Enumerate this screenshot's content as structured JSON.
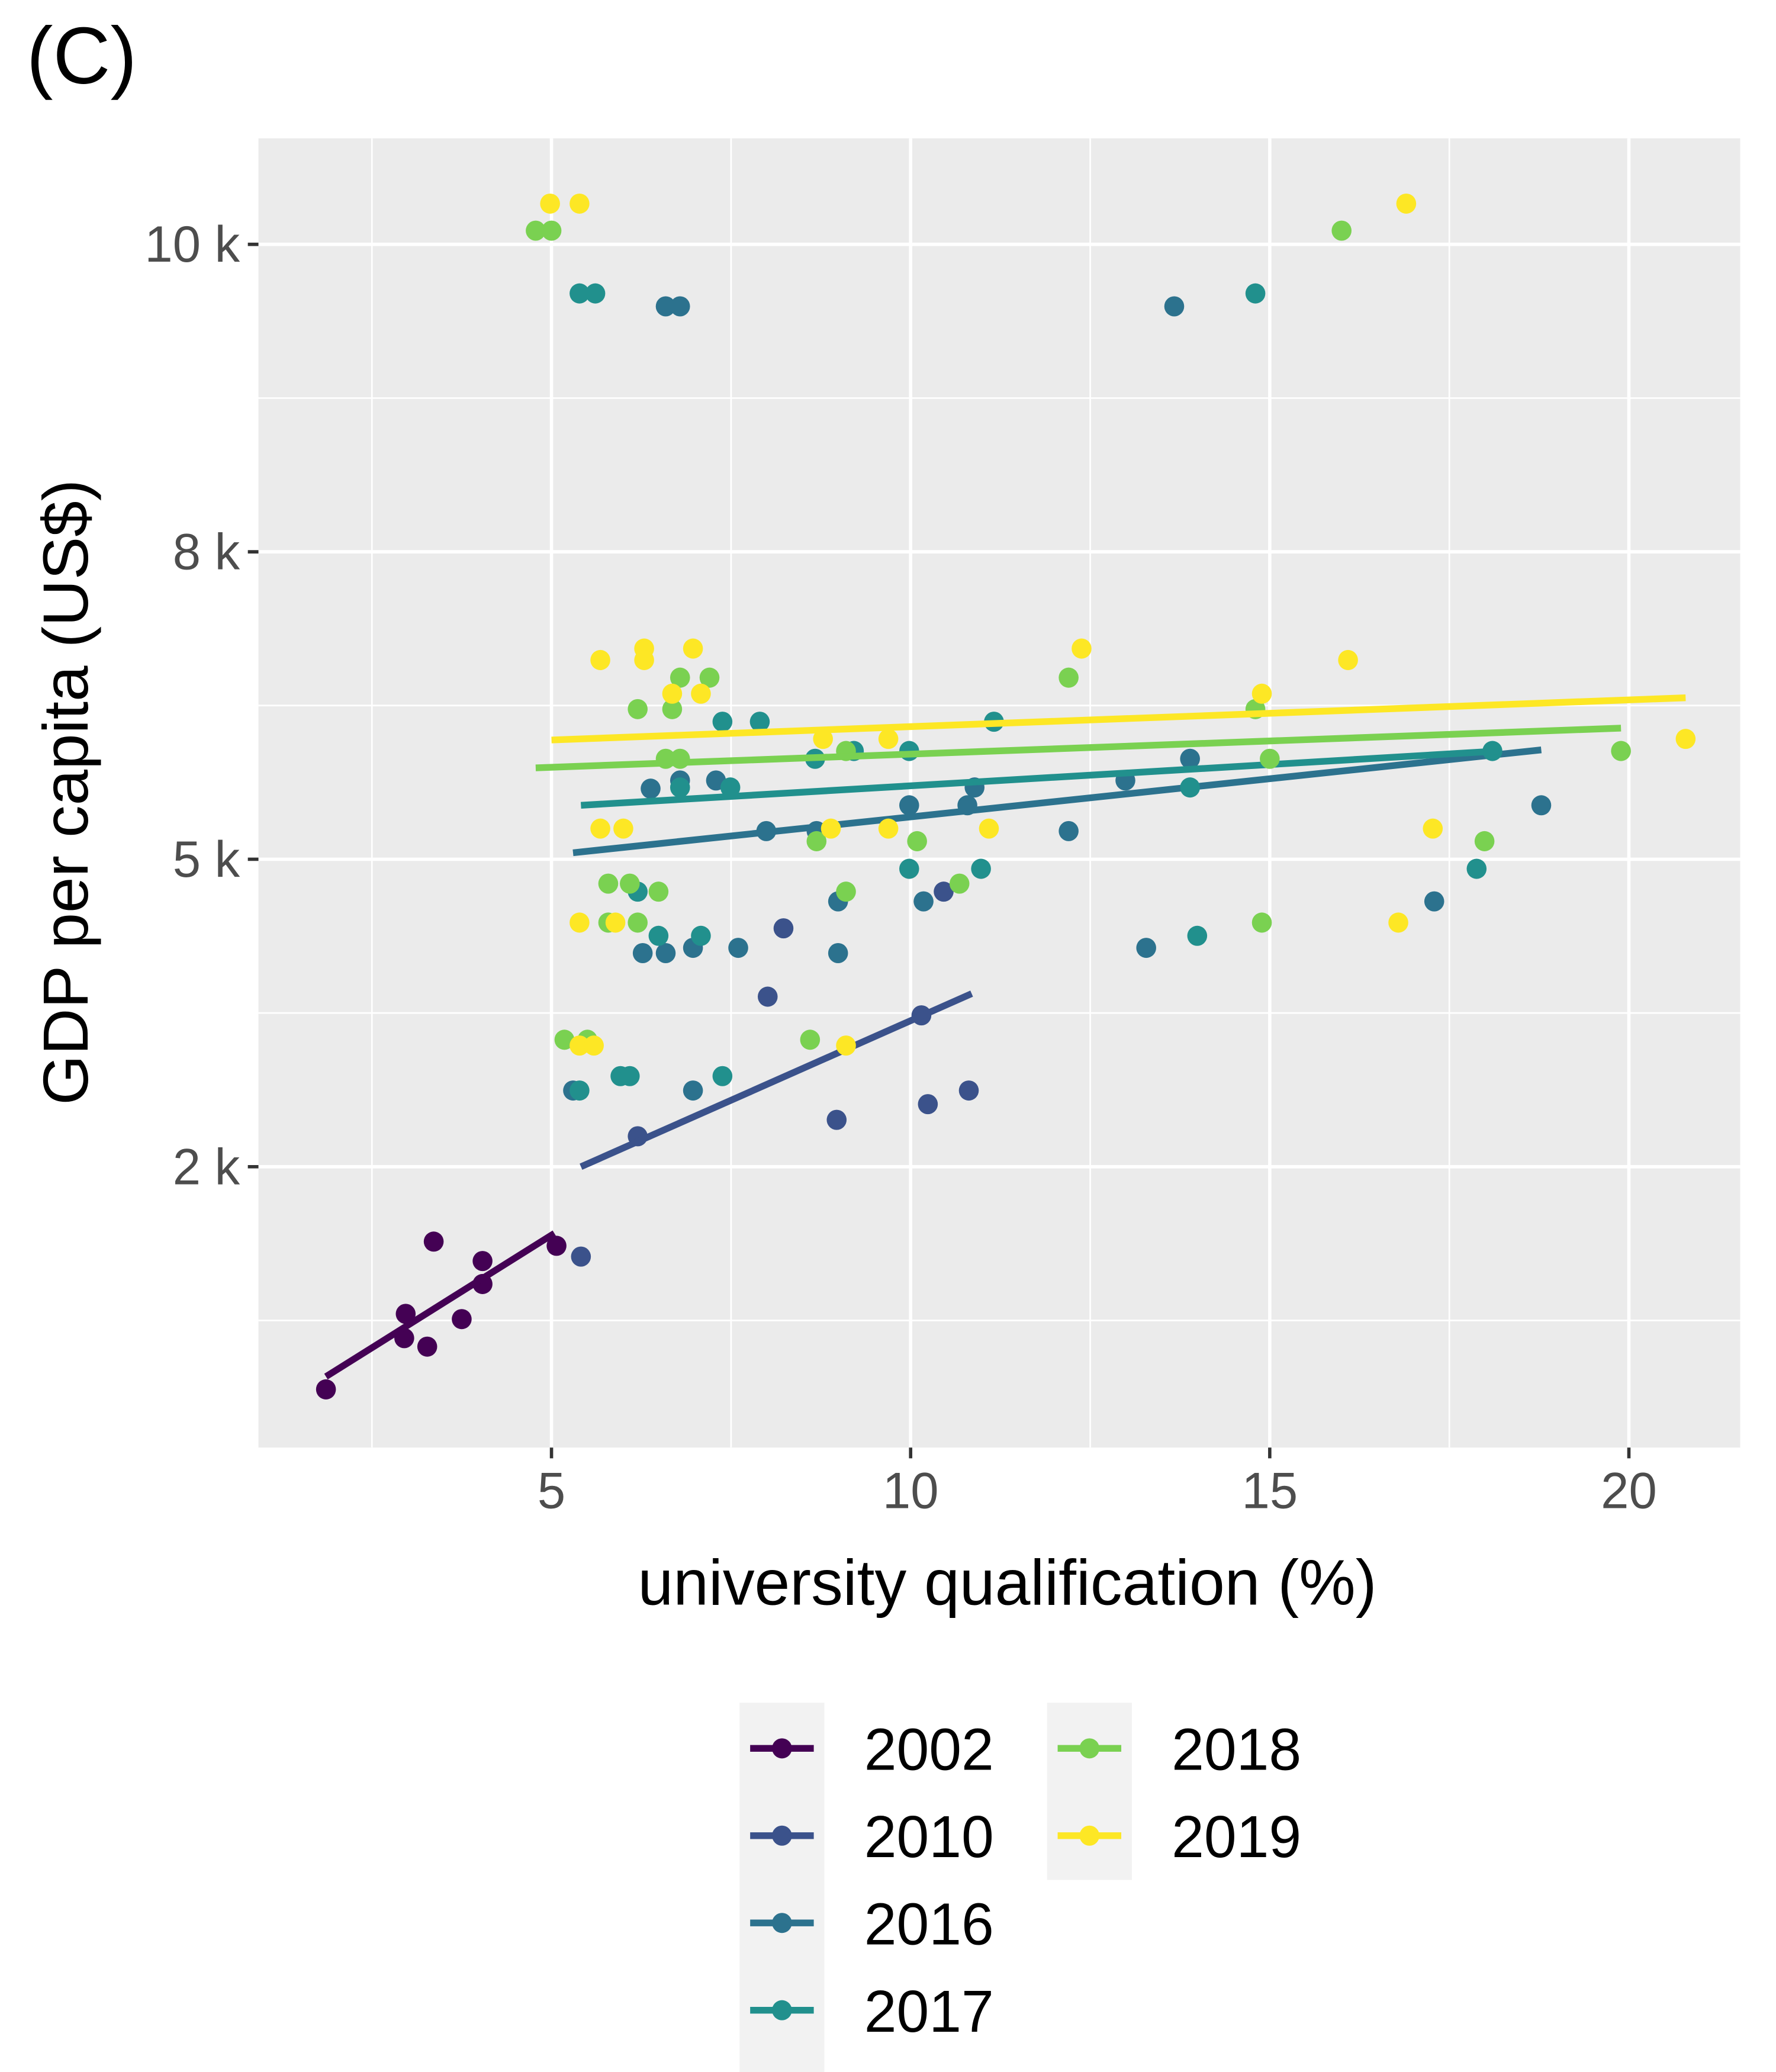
{
  "chart_data": {
    "type": "scatter",
    "panel_label": "(C)",
    "x_label": "university qualification (%)",
    "y_label": "GDP per capita (US$)",
    "xlim": [
      0.92,
      21.55
    ],
    "ylim": [
      866,
      10800
    ],
    "xticks": [
      5,
      10,
      15,
      20
    ],
    "yticks": [
      {
        "value": 2000,
        "label": "2 k"
      },
      {
        "value": 5000,
        "label": "5 k"
      },
      {
        "value": 8000,
        "label": "8 k"
      },
      {
        "value": 10000,
        "label": "10 k"
      }
    ],
    "grid": true,
    "legend": "bottom",
    "series": [
      {
        "name": "2002",
        "color": "#440154",
        "x": [
          1.86,
          2.97,
          2.95,
          3.36,
          3.27,
          3.75,
          4.04,
          4.04,
          5.07
        ],
        "values": [
          1030,
          1290,
          1200,
          1600,
          1170,
          1270,
          1510,
          1410,
          1580
        ],
        "trend": {
          "x": [
            1.86,
            5.04
          ],
          "values": [
            1070,
            1640
          ]
        }
      },
      {
        "name": "2010",
        "color": "#3b528b",
        "x": [
          5.41,
          6.2,
          8.01,
          8.23,
          8.97,
          10.15,
          10.24,
          10.46,
          10.81
        ],
        "values": [
          1530,
          2190,
          3320,
          4070,
          2300,
          3140,
          2410,
          4540,
          2510
        ],
        "trend": {
          "x": [
            5.41,
            10.85
          ],
          "values": [
            2000,
            3350
          ]
        }
      },
      {
        "name": "2016",
        "color": "#2c728e",
        "x": [
          6.59,
          6.79,
          13.67,
          6.38,
          6.79,
          7.29,
          7.99,
          8.69,
          9.98,
          10.79,
          10.89,
          12.2,
          12.99,
          13.89,
          18.78,
          6.27,
          6.59,
          6.97,
          7.6,
          8.99,
          8.99,
          10.18,
          13.28,
          17.29,
          5.3,
          6.97
        ],
        "values": [
          9560,
          9560,
          9560,
          5570,
          5640,
          5640,
          5220,
          5220,
          5430,
          5430,
          5580,
          5220,
          5640,
          5830,
          5430,
          3780,
          3780,
          3840,
          3840,
          4410,
          3780,
          4410,
          3840,
          4410,
          2510,
          2510
        ],
        "trend": {
          "x": [
            5.3,
            18.78
          ],
          "values": [
            5050,
            5910
          ]
        }
      },
      {
        "name": "2017",
        "color": "#21908d",
        "x": [
          5.39,
          5.61,
          14.8,
          7.9,
          7.38,
          7.49,
          6.79,
          9.21,
          11.16,
          9.98,
          13.89,
          18.1,
          6.2,
          6.49,
          7.08,
          9.98,
          10.98,
          13.99,
          17.88,
          5.39,
          5.96,
          6.09,
          7.38,
          8.67
        ],
        "values": [
          9650,
          9650,
          9650,
          6170,
          6170,
          5580,
          5580,
          5900,
          6170,
          5900,
          5580,
          5900,
          4540,
          3980,
          3980,
          4860,
          4860,
          3980,
          4860,
          2510,
          2620,
          2620,
          2620,
          5830
        ],
        "trend": {
          "x": [
            5.41,
            18.19
          ],
          "values": [
            5430,
            5900
          ]
        }
      },
      {
        "name": "2018",
        "color": "#7ad151",
        "x": [
          4.78,
          5.0,
          16.0,
          6.2,
          6.68,
          6.79,
          7.2,
          6.59,
          6.79,
          12.2,
          14.8,
          15.0,
          19.89,
          5.79,
          6.09,
          5.79,
          6.2,
          6.49,
          8.69,
          9.1,
          10.09,
          9.1,
          10.68,
          14.89,
          17.99,
          5.18,
          5.5,
          8.6
        ],
        "values": [
          10100,
          10100,
          10100,
          6290,
          6290,
          6600,
          6600,
          5830,
          5830,
          6600,
          6290,
          5830,
          5900,
          4650,
          4650,
          4140,
          4140,
          4540,
          5140,
          5900,
          5140,
          4540,
          4650,
          4140,
          5140,
          2920,
          2920,
          2920
        ],
        "trend": {
          "x": [
            4.78,
            19.89
          ],
          "values": [
            5750,
            6110
          ]
        }
      },
      {
        "name": "2019",
        "color": "#fde725",
        "x": [
          4.98,
          5.39,
          16.9,
          5.68,
          6.29,
          6.29,
          6.97,
          6.68,
          7.08,
          12.38,
          14.89,
          16.09,
          8.78,
          9.69,
          20.79,
          5.68,
          6.0,
          8.89,
          9.69,
          11.09,
          17.27,
          5.39,
          5.89,
          16.79,
          5.39,
          5.59,
          9.1
        ],
        "values": [
          10300,
          10300,
          10300,
          6780,
          6900,
          6780,
          6900,
          6440,
          6440,
          6900,
          6440,
          6780,
          6010,
          6010,
          6010,
          5240,
          5240,
          5240,
          5240,
          5240,
          5240,
          4140,
          4140,
          4140,
          2870,
          2870,
          2870
        ],
        "trend": {
          "x": [
            5.0,
            20.79
          ],
          "values": [
            6000,
            6400
          ]
        }
      }
    ]
  }
}
